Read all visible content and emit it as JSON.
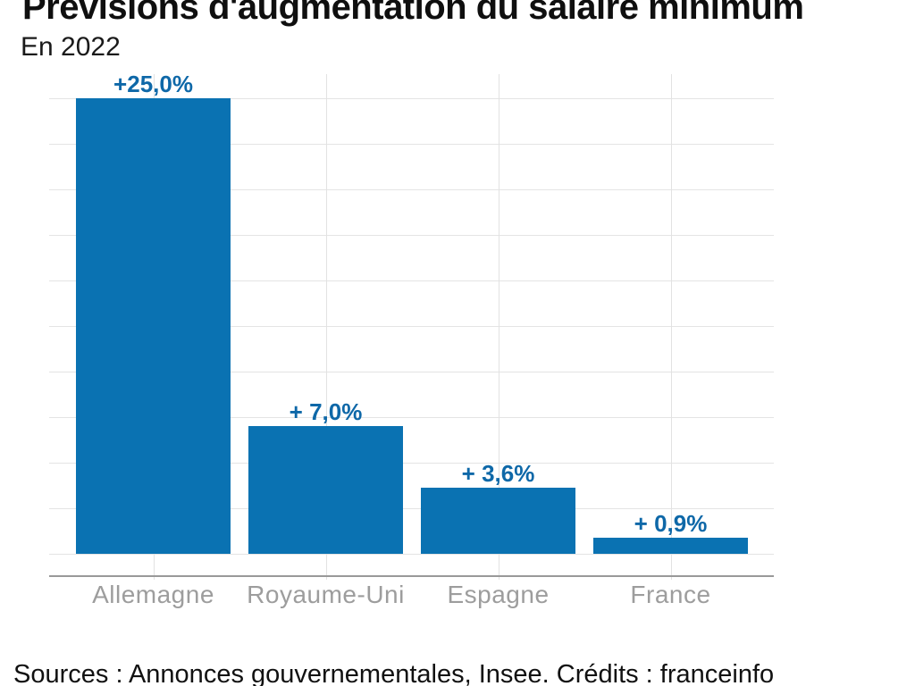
{
  "header": {
    "title": "Prévisions d'augmentation du salaire minimum",
    "subtitle": "En 2022"
  },
  "footer": {
    "sources": "Sources : Annonces gouvernementales, Insee. Crédits : franceinfo"
  },
  "chart_data": {
    "type": "bar",
    "title": "Prévisions d'augmentation du salaire minimum",
    "subtitle": "En 2022",
    "categories": [
      "Allemagne",
      "Royaume-Uni",
      "Espagne",
      "France"
    ],
    "values": [
      25.0,
      7.0,
      3.6,
      0.9
    ],
    "value_labels": [
      "+25,0%",
      "+ 7,0%",
      "+ 3,6%",
      "+ 0,9%"
    ],
    "xlabel": "",
    "ylabel": "",
    "ylim": [
      0,
      25
    ],
    "gridline_step": 2.5,
    "grid": true,
    "legend_position": "none",
    "source_note": "Sources : Annonces gouvernementales, Insee. Crédits : franceinfo",
    "colors": {
      "bar": "#0a72b2",
      "value_label": "#0e68a8",
      "category_label": "#9d9d9d",
      "axis_line": "#999999",
      "h_gridline": "#e4e4e4",
      "v_gridline": "#e2e2e2",
      "title": "#0f0f0f",
      "background": "#ffffff"
    }
  }
}
